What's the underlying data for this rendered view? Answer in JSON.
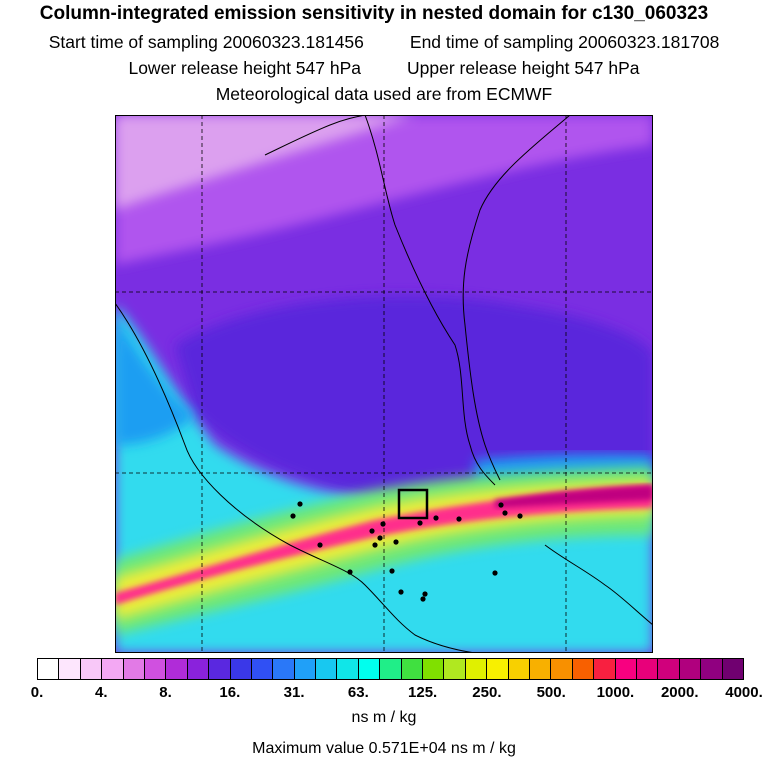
{
  "title": "Column-integrated emission sensitivity in nested domain for c130_060323",
  "sampling": {
    "start_label": "Start time of sampling 20060323.181456",
    "end_label": "End time of sampling 20060323.181708"
  },
  "release": {
    "lower_label": "Lower release height  547 hPa",
    "upper_label": "Upper release height  547 hPa"
  },
  "met_source": "Meteorological data used are from ECMWF",
  "colorbar": {
    "colors": [
      "#ffffff",
      "#fde6fd",
      "#f8c8f8",
      "#f3a8f3",
      "#e27ae6",
      "#d050e0",
      "#b02cd8",
      "#8a22dc",
      "#5a28e0",
      "#3a38e8",
      "#3050f4",
      "#2a78f8",
      "#20a0f8",
      "#18c8f0",
      "#10e6e8",
      "#00ffee",
      "#20ee88",
      "#40e040",
      "#80e000",
      "#b0e820",
      "#e0f000",
      "#f8f000",
      "#f8d000",
      "#f8b000",
      "#f89000",
      "#f86000",
      "#f82040",
      "#f80080",
      "#e8007a",
      "#d0007c",
      "#b0007e",
      "#900080",
      "#700070"
    ],
    "tick_labels": [
      "0.",
      "4.",
      "8.",
      "16.",
      "31.",
      "63.",
      "125.",
      "250.",
      "500.",
      "1000.",
      "2000.",
      "4000."
    ],
    "units": "ns m / kg"
  },
  "max_value_label": "Maximum value  0.571E+04 ns m / kg",
  "map": {
    "bands": [
      {
        "name": "far-field",
        "color": "#7a2ee2"
      },
      {
        "name": "upper-band",
        "color": "#b055ee"
      },
      {
        "name": "light-top",
        "color": "#dca0ef"
      },
      {
        "name": "core-mid",
        "color": "#5a28dc"
      },
      {
        "name": "cyan",
        "color": "#32dbee"
      },
      {
        "name": "cyan-dark",
        "color": "#1e9ef2"
      },
      {
        "name": "green",
        "color": "#6ee878"
      },
      {
        "name": "yellow",
        "color": "#ecec3a"
      },
      {
        "name": "pink",
        "color": "#ff2e8c"
      },
      {
        "name": "magenta-core",
        "color": "#c00080"
      }
    ],
    "gridline_color": "#000000",
    "coastline_color": "#000000"
  }
}
